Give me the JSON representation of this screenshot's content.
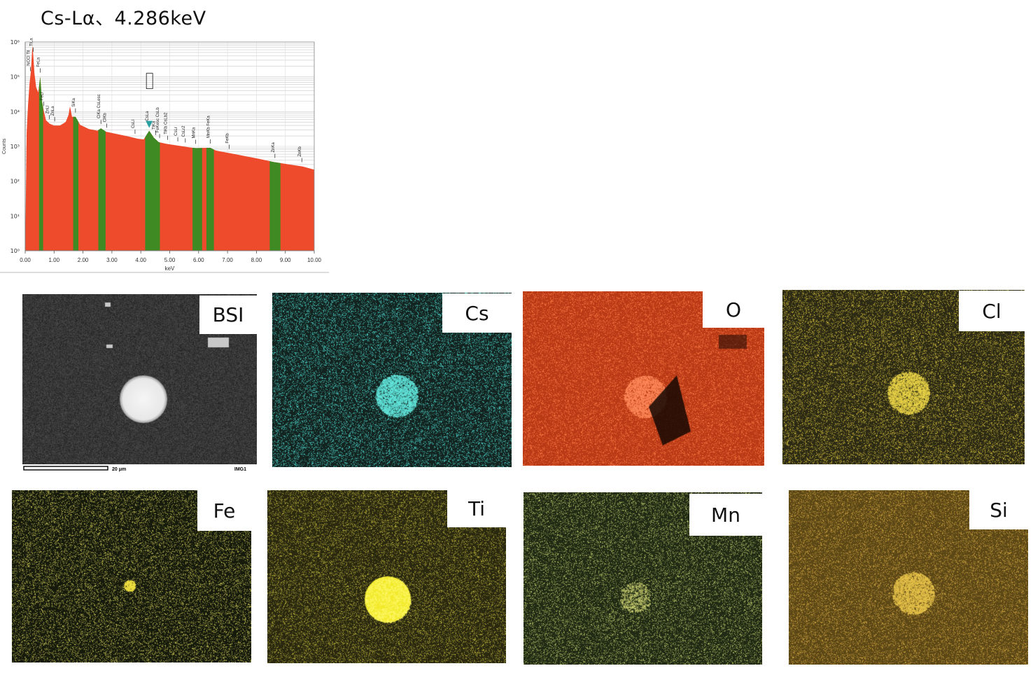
{
  "title": "Cs-Lα、4.286keV",
  "chart_data": {
    "type": "area",
    "title": "Cs-Lα、4.286keV",
    "xlabel": "keV",
    "ylabel": "Counts",
    "xlim": [
      0,
      10
    ],
    "ylim_log10": [
      0,
      6
    ],
    "yscale": "log",
    "grid": true,
    "x_ticks": [
      "0.00",
      "1.00",
      "2.00",
      "3.00",
      "4.00",
      "5.00",
      "6.00",
      "7.00",
      "8.00",
      "9.00",
      "10.00"
    ],
    "y_ticks": [
      "10⁰",
      "10¹",
      "10²",
      "10³",
      "10⁴",
      "10⁵",
      "10⁶"
    ],
    "fill_color": "#ee4a2c",
    "roi_color": "#3f8a22",
    "spectrum_log10": [
      {
        "x": 0.0,
        "y": 0.0
      },
      {
        "x": 0.05,
        "y": 3.4
      },
      {
        "x": 0.1,
        "y": 4.2
      },
      {
        "x": 0.15,
        "y": 4.8
      },
      {
        "x": 0.2,
        "y": 5.2
      },
      {
        "x": 0.25,
        "y": 5.9
      },
      {
        "x": 0.28,
        "y": 5.6
      },
      {
        "x": 0.32,
        "y": 5.1
      },
      {
        "x": 0.38,
        "y": 4.7
      },
      {
        "x": 0.45,
        "y": 4.55
      },
      {
        "x": 0.52,
        "y": 5.0
      },
      {
        "x": 0.58,
        "y": 4.3
      },
      {
        "x": 0.65,
        "y": 4.0
      },
      {
        "x": 0.72,
        "y": 3.75
      },
      {
        "x": 0.85,
        "y": 3.65
      },
      {
        "x": 1.0,
        "y": 3.6
      },
      {
        "x": 1.2,
        "y": 3.6
      },
      {
        "x": 1.4,
        "y": 3.7
      },
      {
        "x": 1.5,
        "y": 3.9
      },
      {
        "x": 1.55,
        "y": 4.15
      },
      {
        "x": 1.62,
        "y": 3.85
      },
      {
        "x": 1.74,
        "y": 3.85
      },
      {
        "x": 1.9,
        "y": 3.62
      },
      {
        "x": 2.2,
        "y": 3.5
      },
      {
        "x": 2.5,
        "y": 3.45
      },
      {
        "x": 2.62,
        "y": 3.52
      },
      {
        "x": 2.8,
        "y": 3.42
      },
      {
        "x": 3.2,
        "y": 3.35
      },
      {
        "x": 3.6,
        "y": 3.28
      },
      {
        "x": 3.9,
        "y": 3.22
      },
      {
        "x": 4.1,
        "y": 3.2
      },
      {
        "x": 4.29,
        "y": 3.45
      },
      {
        "x": 4.45,
        "y": 3.25
      },
      {
        "x": 4.62,
        "y": 3.12
      },
      {
        "x": 4.9,
        "y": 3.07
      },
      {
        "x": 5.3,
        "y": 3.02
      },
      {
        "x": 5.7,
        "y": 2.97
      },
      {
        "x": 5.9,
        "y": 2.95
      },
      {
        "x": 6.4,
        "y": 2.96
      },
      {
        "x": 6.6,
        "y": 2.88
      },
      {
        "x": 7.1,
        "y": 2.8
      },
      {
        "x": 7.6,
        "y": 2.72
      },
      {
        "x": 8.1,
        "y": 2.64
      },
      {
        "x": 8.6,
        "y": 2.55
      },
      {
        "x": 9.2,
        "y": 2.47
      },
      {
        "x": 9.6,
        "y": 2.42
      },
      {
        "x": 10.0,
        "y": 2.33
      }
    ],
    "roi_bands_kev": [
      [
        0.48,
        0.62
      ],
      [
        1.66,
        1.84
      ],
      [
        2.53,
        2.78
      ],
      [
        4.15,
        4.66
      ],
      [
        5.79,
        6.12
      ],
      [
        6.27,
        6.53
      ],
      [
        8.46,
        8.83
      ]
    ],
    "peak_labels": [
      {
        "x": 0.18,
        "label": "NCCl Til"
      },
      {
        "x": 0.28,
        "label": "TiLa"
      },
      {
        "x": 0.52,
        "label": "FeLa"
      },
      {
        "x": 0.64,
        "label": "FeLl"
      },
      {
        "x": 0.84,
        "label": "ZnLl"
      },
      {
        "x": 1.02,
        "label": "ZnLa"
      },
      {
        "x": 1.74,
        "label": "SiKa"
      },
      {
        "x": 2.62,
        "label": "ClKa CsLesc"
      },
      {
        "x": 2.82,
        "label": "ClKb"
      },
      {
        "x": 3.8,
        "label": "CsLl"
      },
      {
        "x": 4.29,
        "label": "CsLa"
      },
      {
        "x": 4.51,
        "label": "TiKa"
      },
      {
        "x": 4.65,
        "label": "FeKesc CsLb"
      },
      {
        "x": 4.93,
        "label": "TiKb CsLb2"
      },
      {
        "x": 5.28,
        "label": "CsLr"
      },
      {
        "x": 5.54,
        "label": "CsLr2"
      },
      {
        "x": 5.9,
        "label": "MnKa"
      },
      {
        "x": 6.4,
        "label": "MnKb FeKa"
      },
      {
        "x": 7.06,
        "label": "FeKb"
      },
      {
        "x": 8.64,
        "label": "ZnKa"
      },
      {
        "x": 9.57,
        "label": "ZnKb"
      }
    ],
    "marker_x": 4.29
  },
  "maps": [
    {
      "label": "BSI",
      "kind": "bsi",
      "base": "#2c2c2c",
      "dot": "#bdbdbd",
      "scale_text": "20 μm",
      "img_text": "IMG1"
    },
    {
      "label": "Cs",
      "kind": "map",
      "base": "#13231f",
      "dot": "#4fd8d0",
      "feature": "disk",
      "feature_color": "#62e4da"
    },
    {
      "label": "O",
      "kind": "map",
      "base": "#b93a16",
      "dot": "#ff7a44",
      "feature": "shadow",
      "feature_color": "#ff8a5a"
    },
    {
      "label": "Cl",
      "kind": "map",
      "base": "#2c2a14",
      "dot": "#d6c13e",
      "feature": "disk",
      "feature_color": "#e8d248"
    },
    {
      "label": "Fe",
      "kind": "map",
      "base": "#161a0c",
      "dot": "#c8c456",
      "feature": "spot",
      "feature_color": "#f0e040"
    },
    {
      "label": "Ti",
      "kind": "map",
      "base": "#2a2910",
      "dot": "#bcb23a",
      "feature": "bright",
      "feature_color": "#f2ea2a"
    },
    {
      "label": "Mn",
      "kind": "map",
      "base": "#202a14",
      "dot": "#b8c46a",
      "feature": "faint",
      "feature_color": "#c8cc70"
    },
    {
      "label": "Si",
      "kind": "map",
      "base": "#5c4716",
      "dot": "#d0a640",
      "feature": "disk",
      "feature_color": "#e6c24a"
    }
  ]
}
